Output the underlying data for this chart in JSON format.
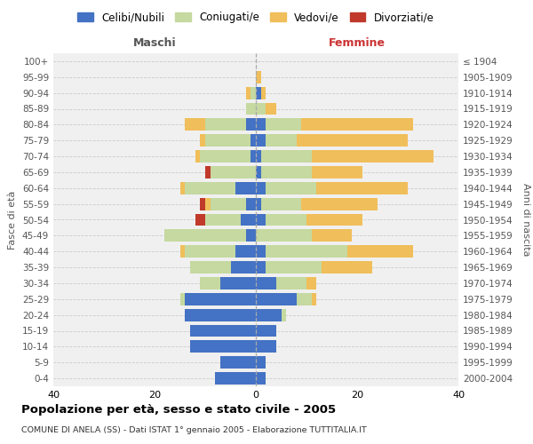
{
  "age_groups": [
    "0-4",
    "5-9",
    "10-14",
    "15-19",
    "20-24",
    "25-29",
    "30-34",
    "35-39",
    "40-44",
    "45-49",
    "50-54",
    "55-59",
    "60-64",
    "65-69",
    "70-74",
    "75-79",
    "80-84",
    "85-89",
    "90-94",
    "95-99",
    "100+"
  ],
  "birth_years": [
    "2000-2004",
    "1995-1999",
    "1990-1994",
    "1985-1989",
    "1980-1984",
    "1975-1979",
    "1970-1974",
    "1965-1969",
    "1960-1964",
    "1955-1959",
    "1950-1954",
    "1945-1949",
    "1940-1944",
    "1935-1939",
    "1930-1934",
    "1925-1929",
    "1920-1924",
    "1915-1919",
    "1910-1914",
    "1905-1909",
    "≤ 1904"
  ],
  "maschi": {
    "celibi": [
      8,
      7,
      13,
      13,
      14,
      14,
      7,
      5,
      4,
      2,
      3,
      2,
      4,
      0,
      1,
      1,
      2,
      0,
      0,
      0,
      0
    ],
    "coniugati": [
      0,
      0,
      0,
      0,
      0,
      1,
      4,
      8,
      10,
      16,
      7,
      7,
      10,
      9,
      10,
      9,
      8,
      2,
      1,
      0,
      0
    ],
    "vedovi": [
      0,
      0,
      0,
      0,
      0,
      0,
      0,
      0,
      1,
      0,
      0,
      1,
      1,
      0,
      1,
      1,
      4,
      0,
      1,
      0,
      0
    ],
    "divorziati": [
      0,
      0,
      0,
      0,
      0,
      0,
      0,
      0,
      0,
      0,
      2,
      1,
      0,
      1,
      0,
      0,
      0,
      0,
      0,
      0,
      0
    ]
  },
  "femmine": {
    "nubili": [
      2,
      2,
      4,
      4,
      5,
      8,
      4,
      2,
      2,
      0,
      2,
      1,
      2,
      1,
      1,
      2,
      2,
      0,
      1,
      0,
      0
    ],
    "coniugate": [
      0,
      0,
      0,
      0,
      1,
      3,
      6,
      11,
      16,
      11,
      8,
      8,
      10,
      10,
      10,
      6,
      7,
      2,
      0,
      0,
      0
    ],
    "vedove": [
      0,
      0,
      0,
      0,
      0,
      1,
      2,
      10,
      13,
      8,
      11,
      15,
      18,
      10,
      24,
      22,
      22,
      2,
      1,
      1,
      0
    ],
    "divorziate": [
      0,
      0,
      0,
      0,
      0,
      0,
      0,
      0,
      0,
      0,
      0,
      0,
      0,
      0,
      0,
      0,
      0,
      0,
      0,
      0,
      0
    ]
  },
  "colors": {
    "celibi_nubili": "#4472c4",
    "coniugati": "#c5d9a0",
    "vedovi": "#f0be5a",
    "divorziati": "#c0392b"
  },
  "xlim": [
    -40,
    40
  ],
  "title": "Popolazione per età, sesso e stato civile - 2005",
  "subtitle": "COMUNE DI ANELA (SS) - Dati ISTAT 1° gennaio 2005 - Elaborazione TUTTITALIA.IT",
  "ylabel_left": "Fasce di età",
  "ylabel_right": "Anni di nascita",
  "xlabel_maschi": "Maschi",
  "xlabel_femmine": "Femmine",
  "legend_labels": [
    "Celibi/Nubili",
    "Coniugati/e",
    "Vedovi/e",
    "Divorziati/e"
  ]
}
